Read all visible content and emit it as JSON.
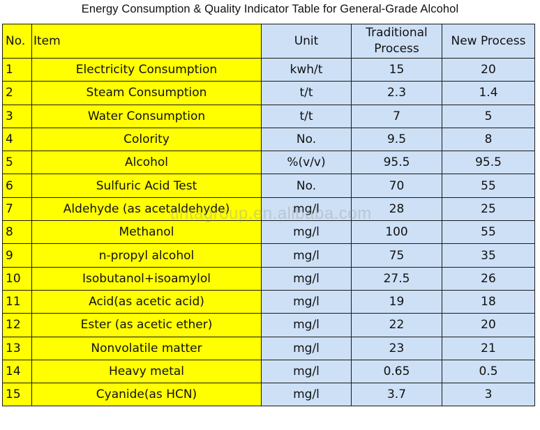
{
  "title": "Energy Consumption & Quality Indicator Table for General-Grade Alcohol",
  "watermark": "tintagroup.en.alibaba.com",
  "colors": {
    "yellow_cells": "#ffff00",
    "blue_cells": "#cde0f6",
    "border": "#1a1a1a"
  },
  "headers": {
    "no": "No.",
    "item": "Item",
    "unit": "Unit",
    "traditional": "Traditional Process",
    "new": "New Process"
  },
  "rows": [
    {
      "no": "1",
      "item": "Electricity Consumption",
      "unit": "kwh/t",
      "traditional": "15",
      "new": "20"
    },
    {
      "no": "2",
      "item": "Steam Consumption",
      "unit": "t/t",
      "traditional": "2.3",
      "new": "1.4"
    },
    {
      "no": "3",
      "item": "Water Consumption",
      "unit": "t/t",
      "traditional": "7",
      "new": "5"
    },
    {
      "no": "4",
      "item": "Colority",
      "unit": "No.",
      "traditional": "9.5",
      "new": "8"
    },
    {
      "no": "5",
      "item": "Alcohol",
      "unit": "%(v/v)",
      "traditional": "95.5",
      "new": "95.5"
    },
    {
      "no": "6",
      "item": "Sulfuric Acid Test",
      "unit": "No.",
      "traditional": "70",
      "new": "55"
    },
    {
      "no": "7",
      "item": "Aldehyde (as acetaldehyde)",
      "unit": "mg/l",
      "traditional": "28",
      "new": "25"
    },
    {
      "no": "8",
      "item": "Methanol",
      "unit": "mg/l",
      "traditional": "100",
      "new": "55"
    },
    {
      "no": "9",
      "item": "n-propyl alcohol",
      "unit": "mg/l",
      "traditional": "75",
      "new": "35"
    },
    {
      "no": "10",
      "item": "Isobutanol+isoamylol",
      "unit": "mg/l",
      "traditional": "27.5",
      "new": "26"
    },
    {
      "no": "11",
      "item": "Acid(as acetic acid)",
      "unit": "mg/l",
      "traditional": "19",
      "new": "18"
    },
    {
      "no": "12",
      "item": "Ester (as acetic ether)",
      "unit": "mg/l",
      "traditional": "22",
      "new": "20"
    },
    {
      "no": "13",
      "item": "Nonvolatile matter",
      "unit": "mg/l",
      "traditional": "23",
      "new": "21"
    },
    {
      "no": "14",
      "item": "Heavy metal",
      "unit": "mg/l",
      "traditional": "0.65",
      "new": "0.5"
    },
    {
      "no": "15",
      "item": "Cyanide(as HCN)",
      "unit": "mg/l",
      "traditional": "3.7",
      "new": "3"
    }
  ]
}
